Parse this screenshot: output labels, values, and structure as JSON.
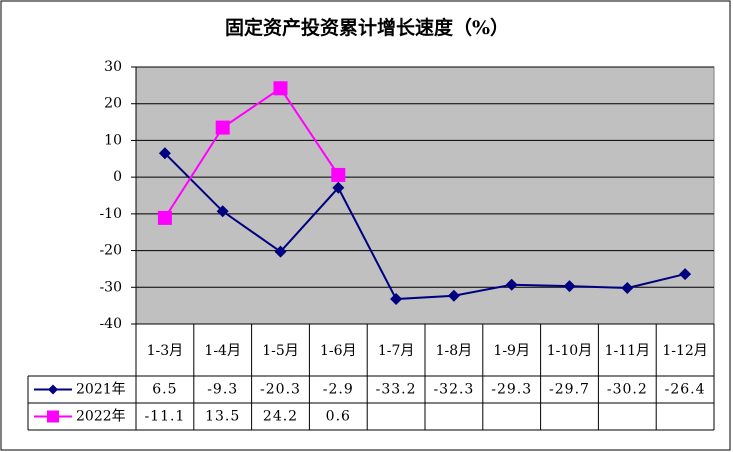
{
  "chart_data": {
    "type": "line",
    "title": "固定资产投资累计增长速度（%）",
    "categories": [
      "1-3月",
      "1-4月",
      "1-5月",
      "1-6月",
      "1-7月",
      "1-8月",
      "1-9月",
      "1-10月",
      "1-11月",
      "1-12月"
    ],
    "series": [
      {
        "name": "2021年",
        "color": "#000080",
        "marker": "diamond",
        "values": [
          6.5,
          -9.3,
          -20.3,
          -2.9,
          -33.2,
          -32.3,
          -29.3,
          -29.7,
          -30.2,
          -26.4
        ]
      },
      {
        "name": "2022年",
        "color": "#ff00ff",
        "marker": "square",
        "values": [
          -11.1,
          13.5,
          24.2,
          0.6,
          null,
          null,
          null,
          null,
          null,
          null
        ]
      }
    ],
    "ylim": [
      -40,
      30
    ],
    "yticks": [
      -40,
      -30,
      -20,
      -10,
      0,
      10,
      20,
      30
    ],
    "grid": true,
    "data_table": true
  }
}
